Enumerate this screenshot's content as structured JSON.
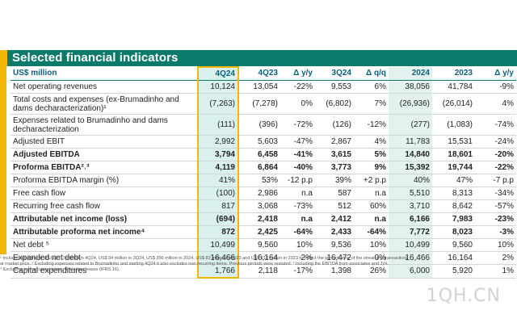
{
  "title": "Selected financial indicators",
  "table": {
    "headers": [
      "US$ million",
      "4Q24",
      "4Q23",
      "Δ y/y",
      "3Q24",
      "Δ q/q",
      "2024",
      "2023",
      "Δ y/y"
    ],
    "rows": [
      {
        "label": "Net operating revenues",
        "bold": false,
        "values": [
          "10,124",
          "13,054",
          "-22%",
          "9,553",
          "6%",
          "38,056",
          "41,784",
          "-9%"
        ]
      },
      {
        "label": "Total costs and expenses (ex-Brumadinho and dams decharacterization)¹",
        "bold": false,
        "values": [
          "(7,263)",
          "(7,278)",
          "0%",
          "(6,802)",
          "7%",
          "(26,936)",
          "(26,014)",
          "4%"
        ]
      },
      {
        "label": "Expenses related to Brumadinho and dams decharacterization",
        "bold": false,
        "values": [
          "(111)",
          "(396)",
          "-72%",
          "(126)",
          "-12%",
          "(277)",
          "(1,083)",
          "-74%"
        ]
      },
      {
        "label": "Adjusted EBIT",
        "bold": false,
        "values": [
          "2,992",
          "5,603",
          "-47%",
          "2,867",
          "4%",
          "11,783",
          "15,531",
          "-24%"
        ]
      },
      {
        "label": "Adjusted EBITDA",
        "bold": true,
        "values": [
          "3,794",
          "6,458",
          "-41%",
          "3,615",
          "5%",
          "14,840",
          "18,601",
          "-20%"
        ]
      },
      {
        "label": "Proforma EBITDA²˒³",
        "bold": true,
        "values": [
          "4,119",
          "6,864",
          "-40%",
          "3,773",
          "9%",
          "15,392",
          "19,744",
          "-22%"
        ]
      },
      {
        "label": "Proforma EBITDA margin (%)",
        "bold": false,
        "values": [
          "41%",
          "53%",
          "-12 p.p",
          "39%",
          "+2 p.p",
          "40%",
          "47%",
          "-7 p.p"
        ]
      },
      {
        "label": "Free cash flow",
        "bold": false,
        "values": [
          "(100)",
          "2,986",
          "n.a",
          "587",
          "n.a",
          "5,510",
          "8,313",
          "-34%"
        ]
      },
      {
        "label": "Recurring free cash flow",
        "bold": false,
        "values": [
          "817",
          "3,068",
          "-73%",
          "512",
          "60%",
          "3,710",
          "8,642",
          "-57%"
        ]
      },
      {
        "label": "Attributable net income (loss)",
        "bold": true,
        "values": [
          "(694)",
          "2,418",
          "n.a",
          "2,412",
          "n.a",
          "6,166",
          "7,983",
          "-23%"
        ]
      },
      {
        "label": "Attributable proforma net income⁴",
        "bold": true,
        "values": [
          "872",
          "2,425",
          "-64%",
          "2,433",
          "-64%",
          "7,772",
          "8,023",
          "-3%"
        ]
      },
      {
        "label": "Net debt ⁵",
        "bold": false,
        "values": [
          "10,499",
          "9,560",
          "10%",
          "9,536",
          "10%",
          "10,499",
          "9,560",
          "10%"
        ]
      },
      {
        "label": "Expanded net debt",
        "bold": false,
        "values": [
          "16,466",
          "16,164",
          "2%",
          "16,472",
          "0%",
          "16,466",
          "16,164",
          "2%"
        ]
      },
      {
        "label": "Capital expenditures",
        "bold": false,
        "values": [
          "1,766",
          "2,118",
          "-17%",
          "1,398",
          "26%",
          "6,000",
          "5,920",
          "1%"
        ]
      }
    ]
  },
  "footnotes": {
    "line1": "¹ Includes adjustment of US$ 113 million in 4Q24, US$ 94 million in 3Q24, US$ 356 million in 2024, US$ 83 million in 4Q23 and US$ 216 million in 2023 to reflect the performance of the streaming transactions",
    "line2": "at market price. ² Excluding expenses related to Brumadinho and starting 4Q24 it also excludes non-recurring items. Previous periods were restated. ³ Including the EBITDA from associates and JVs.",
    "line3": "⁴ Excluding non-recurring items. ⁵Including leases (IFRS 16)."
  },
  "watermark": "1QH.CN",
  "colors": {
    "teal": "#0b7a6a",
    "yellow": "#f2b705",
    "highlight": "#d9f0ec"
  }
}
